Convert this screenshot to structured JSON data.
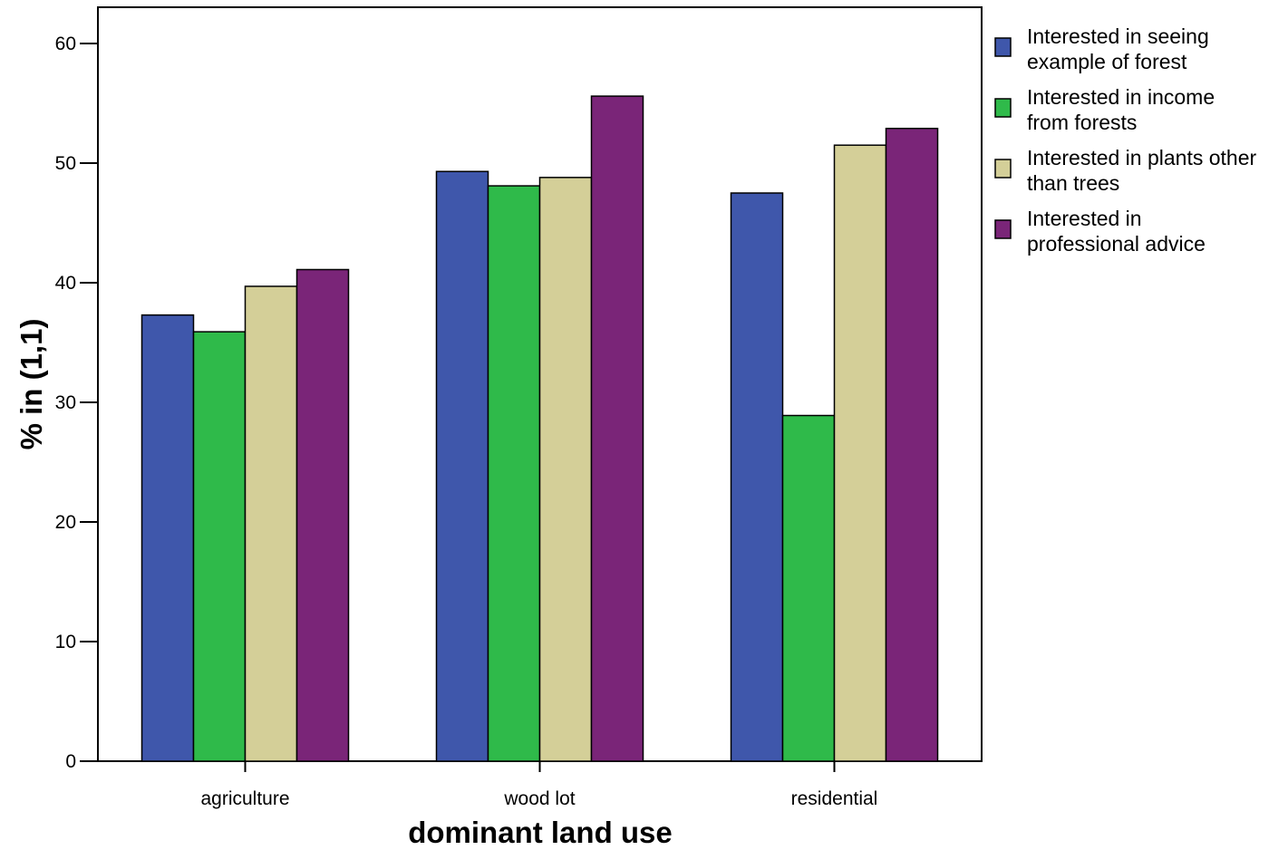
{
  "chart_data": {
    "type": "bar",
    "title": "",
    "xlabel": "dominant land use",
    "ylabel": "% in (1,1)",
    "categories": [
      "agriculture",
      "wood lot",
      "residential"
    ],
    "ylim": [
      0,
      63
    ],
    "yticks": [
      0,
      10,
      20,
      30,
      40,
      50,
      60
    ],
    "grid": false,
    "legend_position": "right",
    "series": [
      {
        "name": [
          "Interested in seeing",
          "example of forest"
        ],
        "color": "#3f57ab",
        "values": [
          37.3,
          49.3,
          47.5
        ]
      },
      {
        "name": [
          "Interested in income",
          "from forests"
        ],
        "color": "#2fba4a",
        "values": [
          35.9,
          48.1,
          28.9
        ]
      },
      {
        "name": [
          "Interested in plants other",
          "than trees"
        ],
        "color": "#d4cf98",
        "values": [
          39.7,
          48.8,
          51.5
        ]
      },
      {
        "name": [
          "Interested in",
          "professional advice"
        ],
        "color": "#7a2578",
        "values": [
          41.1,
          55.6,
          52.9
        ]
      }
    ]
  }
}
